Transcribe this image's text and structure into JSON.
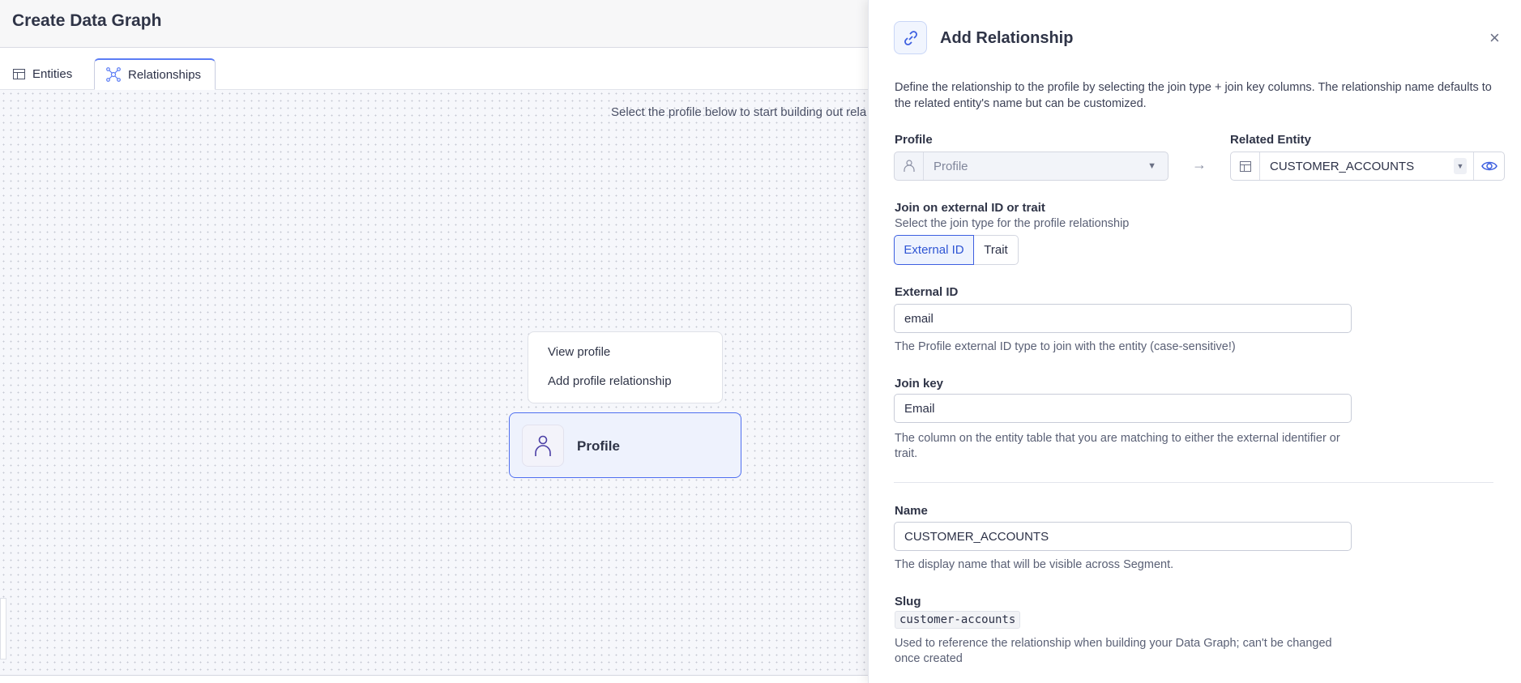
{
  "header": {
    "title": "Create Data Graph"
  },
  "tabs": [
    {
      "label": "Entities",
      "icon": "table-icon",
      "active": false
    },
    {
      "label": "Relationships",
      "icon": "graph-icon",
      "active": true
    }
  ],
  "canvas": {
    "hint": "Select the profile below to start building out rela",
    "menu": [
      "View profile",
      "Add profile relationship"
    ],
    "node": {
      "label": "Profile",
      "icon": "person-icon"
    }
  },
  "panel": {
    "title": "Add Relationship",
    "icon": "link-icon",
    "close": "×",
    "description": "Define the relationship to the profile by selecting the join type + join key columns. The relationship name defaults to the related entity's name but can be customized.",
    "profile": {
      "label": "Profile",
      "value": "Profile"
    },
    "related": {
      "label": "Related Entity",
      "value": "CUSTOMER_ACCOUNTS"
    },
    "join": {
      "label": "Join on external ID or trait",
      "sub": "Select the join type for the profile relationship",
      "options": [
        "External ID",
        "Trait"
      ],
      "selected": "External ID"
    },
    "external_id": {
      "label": "External ID",
      "value": "email",
      "help": "The Profile external ID type to join with the entity (case-sensitive!)"
    },
    "join_key": {
      "label": "Join key",
      "value": "Email",
      "help": "The column on the entity table that you are matching to either the external identifier or trait."
    },
    "name": {
      "label": "Name",
      "value": "CUSTOMER_ACCOUNTS",
      "help": "The display name that will be visible across Segment."
    },
    "slug": {
      "label": "Slug",
      "value": "customer-accounts",
      "help": "Used to reference the relationship when building your Data Graph; can't be changed once created"
    }
  },
  "colors": {
    "accent": "#4f6ff0",
    "panel_bg": "#ffffff",
    "canvas_bg": "#f6f7fb"
  }
}
